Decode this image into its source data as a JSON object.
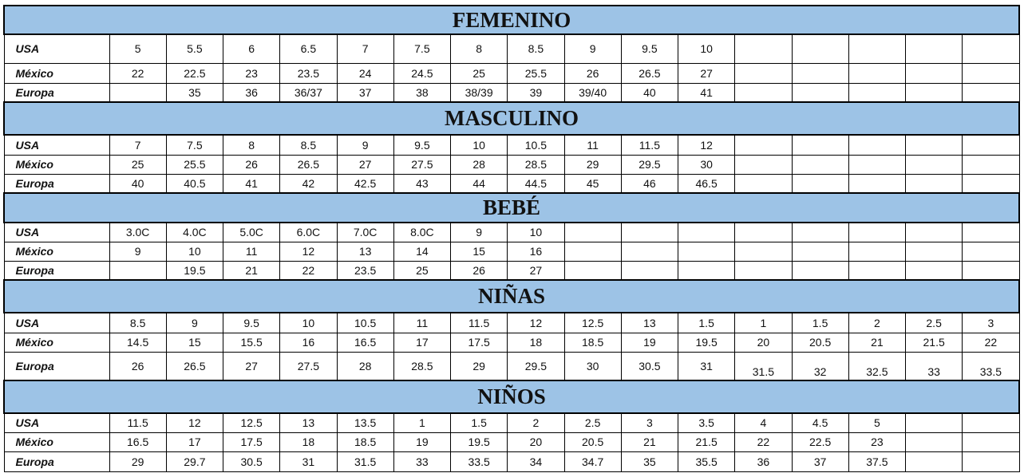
{
  "colors": {
    "header_bg": "#9dc3e6",
    "border": "#000000"
  },
  "sections": [
    {
      "title": "FEMENINO",
      "rows": [
        {
          "label": "USA",
          "values": [
            "5",
            "5.5",
            "6",
            "6.5",
            "7",
            "7.5",
            "8",
            "8.5",
            "9",
            "9.5",
            "10"
          ]
        },
        {
          "label": "México",
          "values": [
            "22",
            "22.5",
            "23",
            "23.5",
            "24",
            "24.5",
            "25",
            "25.5",
            "26",
            "26.5",
            "27"
          ]
        },
        {
          "label": "Europa",
          "values": [
            "",
            "35",
            "36",
            "36/37",
            "37",
            "38",
            "38/39",
            "39",
            "39/40",
            "40",
            "41"
          ]
        }
      ]
    },
    {
      "title": "MASCULINO",
      "rows": [
        {
          "label": "USA",
          "values": [
            "7",
            "7.5",
            "8",
            "8.5",
            "9",
            "9.5",
            "10",
            "10.5",
            "11",
            "11.5",
            "12"
          ]
        },
        {
          "label": "México",
          "values": [
            "25",
            "25.5",
            "26",
            "26.5",
            "27",
            "27.5",
            "28",
            "28.5",
            "29",
            "29.5",
            "30"
          ]
        },
        {
          "label": "Europa",
          "values": [
            "40",
            "40.5",
            "41",
            "42",
            "42.5",
            "43",
            "44",
            "44.5",
            "45",
            "46",
            "46.5"
          ]
        }
      ]
    },
    {
      "title": "BEBÉ",
      "rows": [
        {
          "label": "USA",
          "values": [
            "3.0C",
            "4.0C",
            "5.0C",
            "6.0C",
            "7.0C",
            "8.0C",
            "9",
            "10"
          ]
        },
        {
          "label": "México",
          "values": [
            "9",
            "10",
            "11",
            "12",
            "13",
            "14",
            "15",
            "16"
          ]
        },
        {
          "label": "Europa",
          "values": [
            "",
            "19.5",
            "21",
            "22",
            "23.5",
            "25",
            "26",
            "27"
          ]
        }
      ]
    },
    {
      "title": "NIÑAS",
      "rows": [
        {
          "label": "USA",
          "values": [
            "8.5",
            "9",
            "9.5",
            "10",
            "10.5",
            "11",
            "11.5",
            "12",
            "12.5",
            "13",
            "1.5",
            "1",
            "1.5",
            "2",
            "2.5",
            "3"
          ]
        },
        {
          "label": "México",
          "values": [
            "14.5",
            "15",
            "15.5",
            "16",
            "16.5",
            "17",
            "17.5",
            "18",
            "18.5",
            "19",
            "19.5",
            "20",
            "20.5",
            "21",
            "21.5",
            "22"
          ]
        },
        {
          "label": "Europa",
          "values": [
            "26",
            "26.5",
            "27",
            "27.5",
            "28",
            "28.5",
            "29",
            "29.5",
            "30",
            "30.5",
            "31",
            "31.5",
            "32",
            "32.5",
            "33",
            "33.5"
          ]
        }
      ]
    },
    {
      "title": "NIÑOS",
      "rows": [
        {
          "label": "USA",
          "values": [
            "11.5",
            "12",
            "12.5",
            "13",
            "13.5",
            "1",
            "1.5",
            "2",
            "2.5",
            "3",
            "3.5",
            "4",
            "4.5",
            "5"
          ]
        },
        {
          "label": "México",
          "values": [
            "16.5",
            "17",
            "17.5",
            "18",
            "18.5",
            "19",
            "19.5",
            "20",
            "20.5",
            "21",
            "21.5",
            "22",
            "22.5",
            "23"
          ]
        },
        {
          "label": "Europa",
          "values": [
            "29",
            "29.7",
            "30.5",
            "31",
            "31.5",
            "33",
            "33.5",
            "34",
            "34.7",
            "35",
            "35.5",
            "36",
            "37",
            "37.5"
          ]
        }
      ]
    }
  ]
}
